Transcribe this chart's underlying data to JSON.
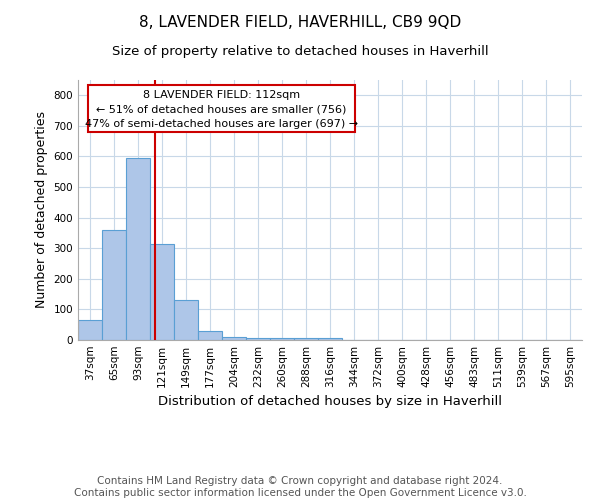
{
  "title": "8, LAVENDER FIELD, HAVERHILL, CB9 9QD",
  "subtitle": "Size of property relative to detached houses in Haverhill",
  "xlabel": "Distribution of detached houses by size in Haverhill",
  "ylabel": "Number of detached properties",
  "categories": [
    "37sqm",
    "65sqm",
    "93sqm",
    "121sqm",
    "149sqm",
    "177sqm",
    "204sqm",
    "232sqm",
    "260sqm",
    "288sqm",
    "316sqm",
    "344sqm",
    "372sqm",
    "400sqm",
    "428sqm",
    "456sqm",
    "483sqm",
    "511sqm",
    "539sqm",
    "567sqm",
    "595sqm"
  ],
  "values": [
    65,
    360,
    595,
    315,
    130,
    28,
    10,
    8,
    8,
    8,
    8,
    0,
    0,
    0,
    0,
    0,
    0,
    0,
    0,
    0,
    0
  ],
  "bar_color": "#aec6e8",
  "bar_edge_color": "#5a9fd4",
  "red_line_x": 2.72,
  "red_line_color": "#cc0000",
  "annotation_line1": "8 LAVENDER FIELD: 112sqm",
  "annotation_line2": "← 51% of detached houses are smaller (756)",
  "annotation_line3": "47% of semi-detached houses are larger (697) →",
  "ylim": [
    0,
    850
  ],
  "yticks": [
    0,
    100,
    200,
    300,
    400,
    500,
    600,
    700,
    800
  ],
  "footnote": "Contains HM Land Registry data © Crown copyright and database right 2024.\nContains public sector information licensed under the Open Government Licence v3.0.",
  "bg_color": "#ffffff",
  "grid_color": "#c8d8e8",
  "title_fontsize": 11,
  "subtitle_fontsize": 9.5,
  "xlabel_fontsize": 9.5,
  "ylabel_fontsize": 9,
  "tick_fontsize": 7.5,
  "annotation_fontsize": 8,
  "footnote_fontsize": 7.5
}
